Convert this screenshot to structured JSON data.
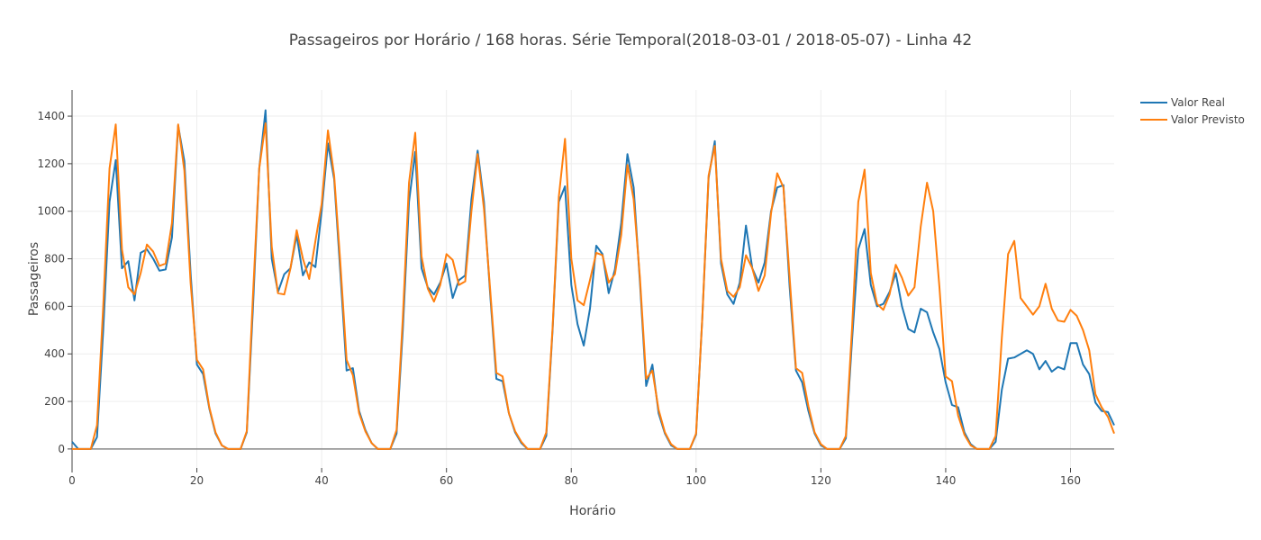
{
  "chart_data": {
    "type": "line",
    "title": "Passageiros por Horário / 168 horas. Série Temporal(2018-03-01 / 2018-05-07) - Linha 42",
    "xlabel": "Horário",
    "ylabel": "Passageiros",
    "xlim": [
      0,
      167
    ],
    "ylim": [
      -80,
      1510
    ],
    "xticks": [
      0,
      20,
      40,
      60,
      80,
      100,
      120,
      140,
      160
    ],
    "yticks": [
      0,
      200,
      400,
      600,
      800,
      1000,
      1200,
      1400
    ],
    "grid": true,
    "legend": "top-right",
    "x": [
      0,
      1,
      2,
      3,
      4,
      5,
      6,
      7,
      8,
      9,
      10,
      11,
      12,
      13,
      14,
      15,
      16,
      17,
      18,
      19,
      20,
      21,
      22,
      23,
      24,
      25,
      26,
      27,
      28,
      29,
      30,
      31,
      32,
      33,
      34,
      35,
      36,
      37,
      38,
      39,
      40,
      41,
      42,
      43,
      44,
      45,
      46,
      47,
      48,
      49,
      50,
      51,
      52,
      53,
      54,
      55,
      56,
      57,
      58,
      59,
      60,
      61,
      62,
      63,
      64,
      65,
      66,
      67,
      68,
      69,
      70,
      71,
      72,
      73,
      74,
      75,
      76,
      77,
      78,
      79,
      80,
      81,
      82,
      83,
      84,
      85,
      86,
      87,
      88,
      89,
      90,
      91,
      92,
      93,
      94,
      95,
      96,
      97,
      98,
      99,
      100,
      101,
      102,
      103,
      104,
      105,
      106,
      107,
      108,
      109,
      110,
      111,
      112,
      113,
      114,
      115,
      116,
      117,
      118,
      119,
      120,
      121,
      122,
      123,
      124,
      125,
      126,
      127,
      128,
      129,
      130,
      131,
      132,
      133,
      134,
      135,
      136,
      137,
      138,
      139,
      140,
      141,
      142,
      143,
      144,
      145,
      146,
      147,
      148,
      149,
      150,
      151,
      152,
      153,
      154,
      155,
      156,
      157,
      158,
      159,
      160,
      161,
      162,
      163,
      164,
      165,
      166,
      167
    ],
    "series": [
      {
        "name": "Valor Real",
        "color": "#1f77b4",
        "values": [
          30,
          0,
          0,
          0,
          50,
          500,
          1040,
          1215,
          760,
          790,
          625,
          825,
          840,
          800,
          750,
          755,
          890,
          1360,
          1210,
          740,
          355,
          315,
          170,
          65,
          15,
          0,
          0,
          0,
          70,
          600,
          1180,
          1425,
          800,
          660,
          735,
          760,
          900,
          730,
          785,
          765,
          1000,
          1285,
          1135,
          740,
          330,
          340,
          160,
          80,
          25,
          0,
          0,
          0,
          65,
          500,
          1040,
          1250,
          760,
          680,
          650,
          700,
          780,
          635,
          710,
          730,
          1050,
          1255,
          1040,
          650,
          295,
          285,
          150,
          70,
          25,
          0,
          0,
          0,
          55,
          500,
          1040,
          1105,
          690,
          525,
          435,
          590,
          855,
          820,
          655,
          755,
          950,
          1240,
          1100,
          700,
          265,
          355,
          150,
          65,
          15,
          0,
          0,
          0,
          60,
          550,
          1140,
          1295,
          780,
          650,
          610,
          700,
          940,
          760,
          700,
          785,
          1000,
          1100,
          1110,
          680,
          330,
          280,
          160,
          65,
          15,
          0,
          0,
          0,
          45,
          460,
          840,
          925,
          690,
          600,
          610,
          660,
          740,
          600,
          505,
          490,
          590,
          575,
          490,
          420,
          280,
          185,
          175,
          70,
          20,
          0,
          0,
          0,
          30,
          250,
          380,
          385,
          400,
          415,
          400,
          335,
          370,
          325,
          345,
          335,
          445,
          445,
          355,
          315,
          195,
          160,
          155,
          100
        ]
      },
      {
        "name": "Valor Previsto",
        "color": "#ff7f0e",
        "values": [
          0,
          0,
          0,
          0,
          100,
          600,
          1180,
          1365,
          840,
          680,
          650,
          740,
          860,
          830,
          770,
          780,
          950,
          1365,
          1170,
          700,
          375,
          335,
          175,
          70,
          15,
          0,
          0,
          0,
          75,
          650,
          1180,
          1370,
          850,
          655,
          650,
          760,
          920,
          800,
          715,
          875,
          1030,
          1340,
          1150,
          780,
          375,
          310,
          150,
          75,
          25,
          0,
          0,
          0,
          80,
          550,
          1120,
          1330,
          810,
          675,
          620,
          690,
          820,
          795,
          690,
          705,
          1000,
          1240,
          1010,
          670,
          320,
          305,
          150,
          75,
          30,
          0,
          0,
          0,
          70,
          510,
          1060,
          1305,
          800,
          625,
          605,
          710,
          825,
          815,
          700,
          735,
          900,
          1195,
          1050,
          720,
          295,
          330,
          165,
          70,
          20,
          0,
          0,
          0,
          65,
          550,
          1150,
          1275,
          800,
          665,
          640,
          680,
          815,
          760,
          665,
          730,
          990,
          1160,
          1100,
          720,
          340,
          320,
          180,
          70,
          20,
          0,
          0,
          0,
          55,
          510,
          1040,
          1175,
          740,
          610,
          585,
          650,
          775,
          720,
          645,
          680,
          935,
          1120,
          1000,
          680,
          305,
          285,
          140,
          60,
          15,
          0,
          0,
          0,
          55,
          470,
          820,
          875,
          635,
          600,
          565,
          600,
          695,
          590,
          540,
          535,
          585,
          560,
          500,
          415,
          230,
          175,
          135,
          65
        ]
      }
    ]
  }
}
